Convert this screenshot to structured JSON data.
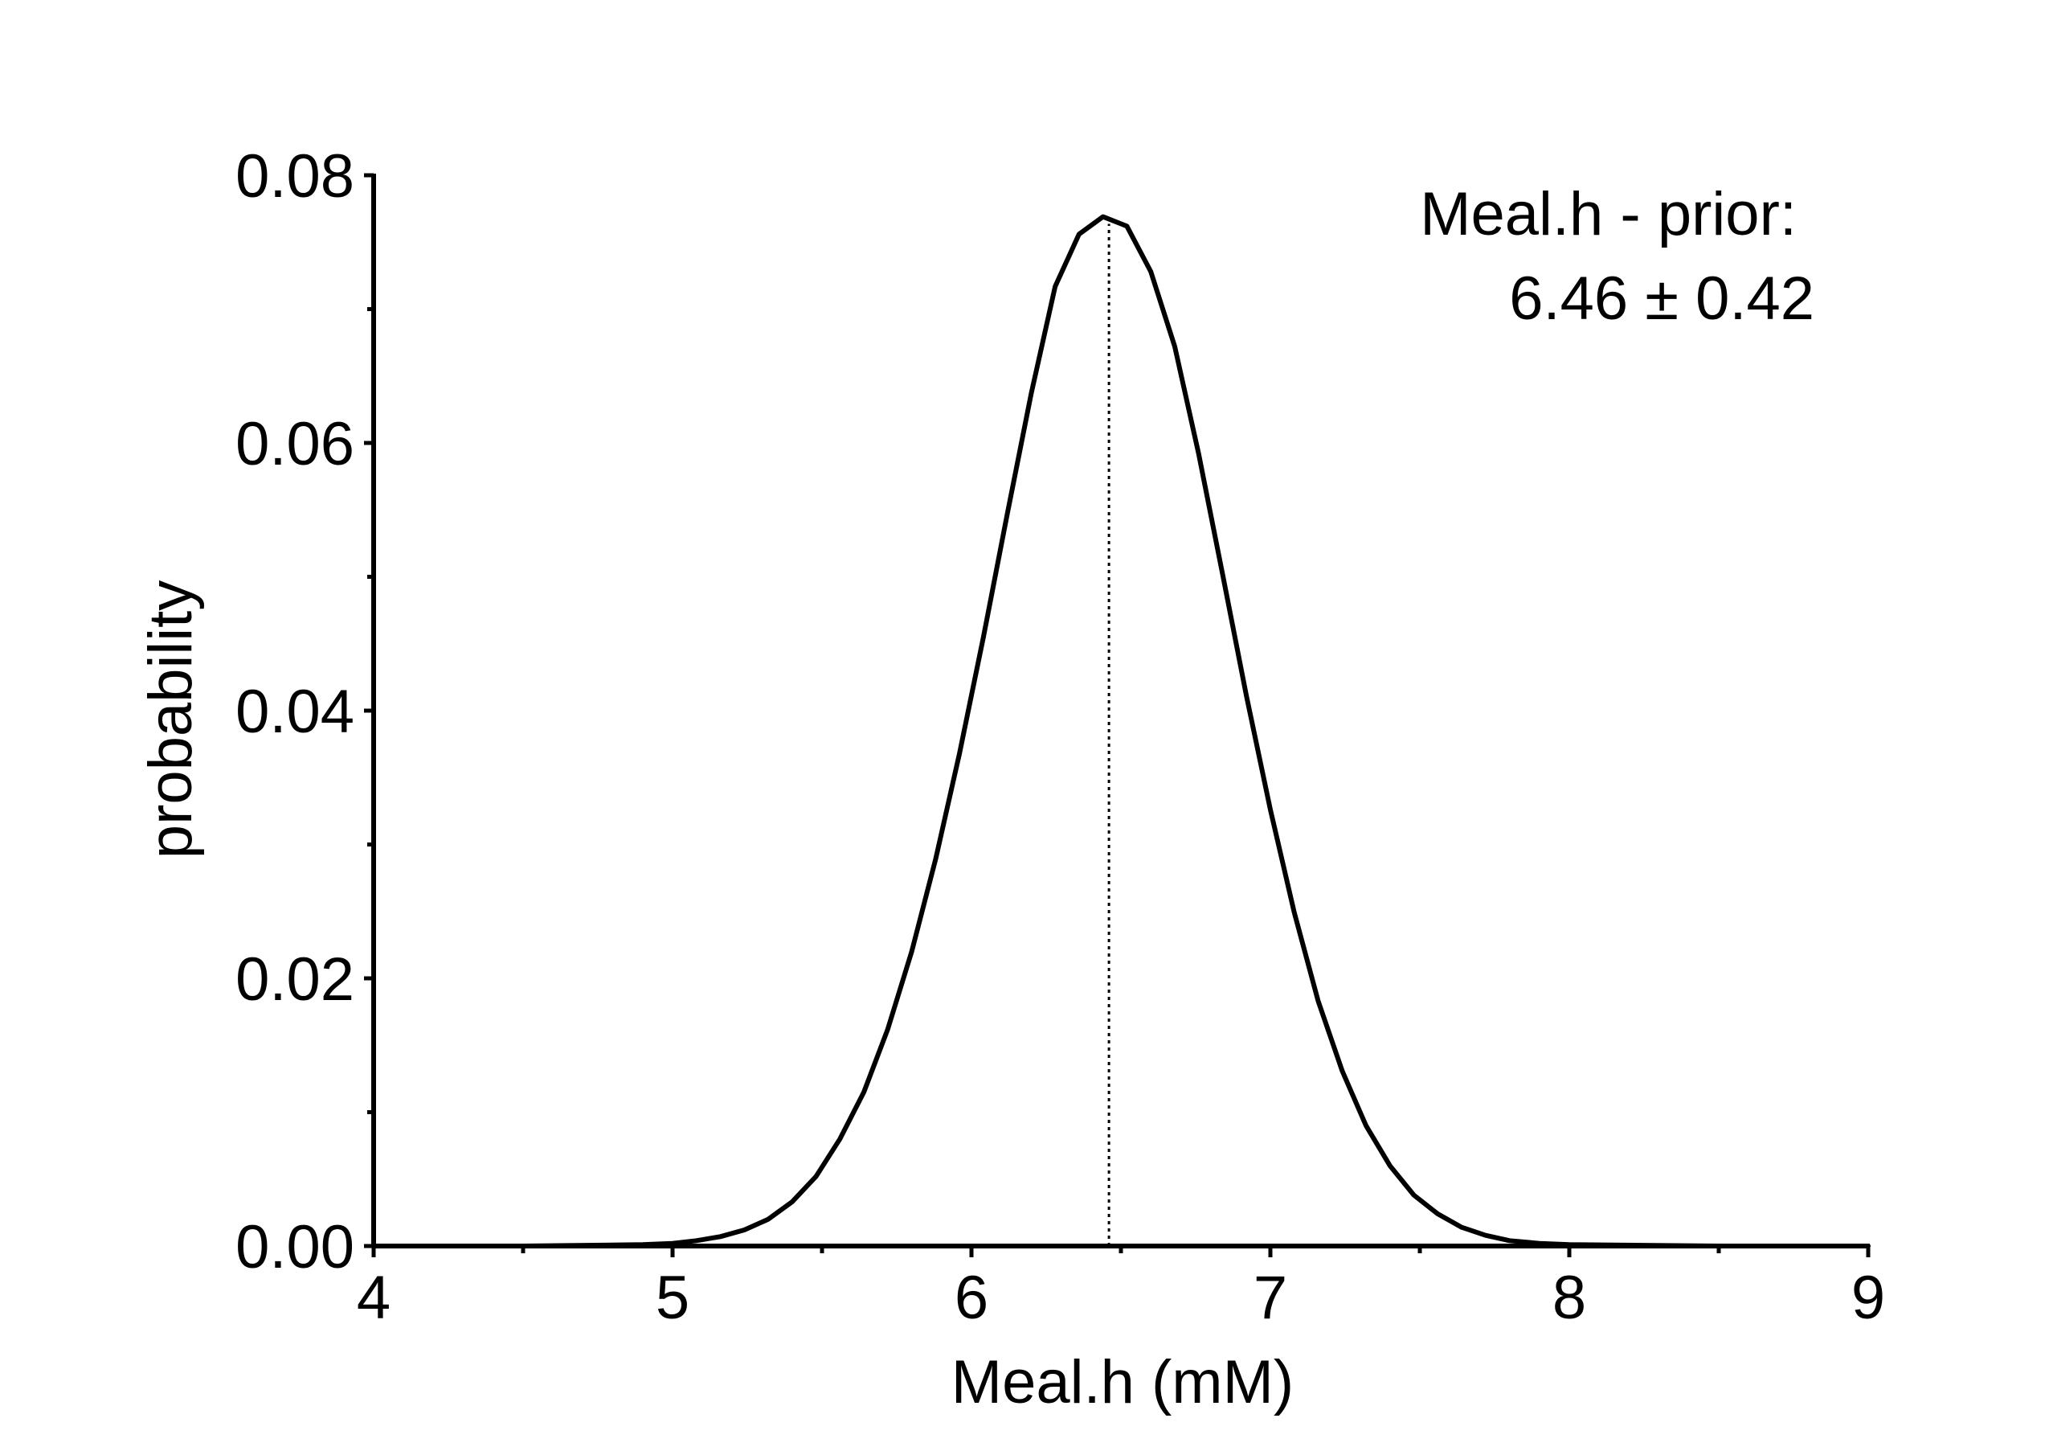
{
  "chart_data": {
    "type": "line",
    "title": "",
    "xlabel": "Meal.h (mM)",
    "ylabel": "probability",
    "xlim": [
      4,
      9
    ],
    "ylim": [
      0,
      0.08
    ],
    "x_ticks": [
      "4",
      "5",
      "6",
      "7",
      "8",
      "9"
    ],
    "y_ticks": [
      "0.00",
      "0.02",
      "0.04",
      "0.06",
      "0.08"
    ],
    "grid": false,
    "legend": "none",
    "annotation": {
      "line1": "Meal.h - prior:",
      "line2": "6.46 ± 0.42"
    },
    "marker_line": {
      "x": 6.46,
      "style": "dotted"
    },
    "series": [
      {
        "x": [
          4.0,
          4.5,
          4.9,
          5.0,
          5.08,
          5.16,
          5.24,
          5.32,
          5.4,
          5.48,
          5.56,
          5.64,
          5.72,
          5.8,
          5.88,
          5.96,
          6.04,
          6.12,
          6.2,
          6.28,
          6.36,
          6.44,
          6.52,
          6.6,
          6.68,
          6.76,
          6.84,
          6.92,
          7.0,
          7.08,
          7.16,
          7.24,
          7.32,
          7.4,
          7.48,
          7.56,
          7.64,
          7.72,
          7.8,
          7.9,
          8.0,
          8.5,
          9.0
        ],
        "values": [
          0.0,
          0.0,
          0.0001,
          0.0002,
          0.0004,
          0.0007,
          0.0012,
          0.002,
          0.0033,
          0.0052,
          0.008,
          0.0115,
          0.0162,
          0.022,
          0.0289,
          0.0368,
          0.0455,
          0.0547,
          0.0637,
          0.0717,
          0.0756,
          0.0769,
          0.0762,
          0.0728,
          0.0672,
          0.0592,
          0.0502,
          0.0411,
          0.0326,
          0.0249,
          0.0183,
          0.0131,
          0.009,
          0.006,
          0.0038,
          0.0024,
          0.0014,
          0.0008,
          0.0004,
          0.0002,
          0.0001,
          0.0,
          0.0
        ]
      }
    ]
  },
  "colors": {
    "line": "#000000",
    "axis": "#000000",
    "background": "#ffffff"
  }
}
